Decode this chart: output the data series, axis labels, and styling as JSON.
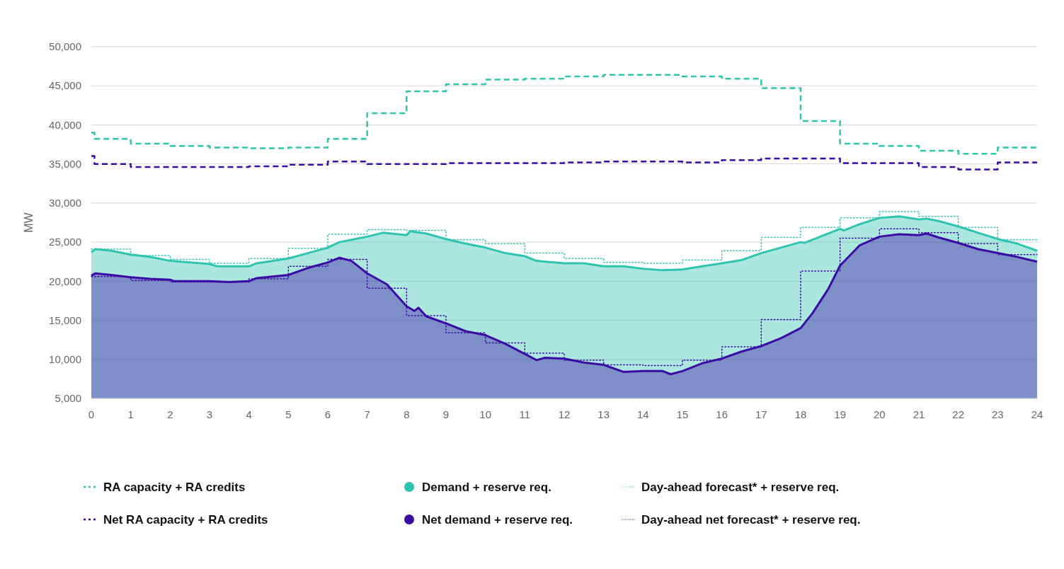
{
  "chart_data": {
    "type": "step",
    "ylabel": "MW",
    "xlim": [
      0,
      24
    ],
    "xticks": [
      0,
      1,
      2,
      3,
      4,
      5,
      6,
      7,
      8,
      9,
      10,
      11,
      12,
      13,
      14,
      15,
      16,
      17,
      18,
      19,
      20,
      21,
      22,
      23,
      24
    ],
    "ylim": [
      5000,
      50000
    ],
    "yticks": [
      {
        "value": 5000,
        "label": "5,000"
      },
      {
        "value": 10000,
        "label": "10,000"
      },
      {
        "value": 15000,
        "label": "15,000"
      },
      {
        "value": 20000,
        "label": "20,000"
      },
      {
        "value": 25000,
        "label": "25,000"
      },
      {
        "value": 30000,
        "label": "30,000"
      },
      {
        "value": 35000,
        "label": "35,000"
      },
      {
        "value": 40000,
        "label": "40,000"
      },
      {
        "value": 45000,
        "label": "45,000"
      },
      {
        "value": 50000,
        "label": "50,000"
      }
    ],
    "grid": "y",
    "legend": "bottom",
    "marker": "none",
    "series": [
      {
        "name": "RA capacity + RA credits",
        "line_style": "dashed",
        "color": "#2ec4b0",
        "x": [
          0,
          0.08,
          1,
          2,
          3,
          4,
          5,
          6,
          7,
          8,
          9,
          10,
          11,
          12,
          13,
          14,
          15,
          16,
          17,
          18,
          19,
          20,
          21,
          22,
          23,
          24
        ],
        "values": [
          39000,
          38200,
          37600,
          37300,
          37100,
          37000,
          37100,
          38200,
          41500,
          44300,
          45200,
          45800,
          45900,
          46200,
          46400,
          46400,
          46200,
          45900,
          44700,
          40500,
          37600,
          37300,
          36700,
          36300,
          37100,
          37100
        ]
      },
      {
        "name": "Demand + reserve req.",
        "type": "area",
        "line_style": "solid",
        "color": "#2ec4b0",
        "x": [
          0,
          0.1,
          0.5,
          1,
          1.5,
          2,
          2.5,
          3,
          3.2,
          4,
          4.2,
          5,
          5.5,
          6,
          6.3,
          7,
          7.4,
          8,
          8.1,
          8.5,
          9,
          9.5,
          10,
          10.5,
          11,
          11.3,
          12,
          12.5,
          13,
          13.5,
          14,
          14.5,
          15,
          15.5,
          16,
          16.5,
          17,
          17.5,
          18,
          18.1,
          18.5,
          19,
          19.1,
          19.5,
          20,
          20.5,
          21,
          21.2,
          21.5,
          22,
          22.5,
          23,
          23.5,
          24
        ],
        "values": [
          23700,
          24100,
          23900,
          23400,
          23100,
          22600,
          22400,
          22200,
          21900,
          21900,
          22300,
          22900,
          23600,
          24300,
          25000,
          25700,
          26200,
          25900,
          26400,
          26100,
          25400,
          24800,
          24300,
          23600,
          23200,
          22600,
          22300,
          22300,
          21900,
          21900,
          21600,
          21400,
          21500,
          21900,
          22300,
          22700,
          23600,
          24300,
          25000,
          24900,
          25700,
          26700,
          26500,
          27300,
          28100,
          28300,
          27900,
          28000,
          27700,
          27000,
          26200,
          25400,
          24800,
          23900
        ]
      },
      {
        "name": "Day-ahead forecast* + reserve req.",
        "line_style": "dotted",
        "color": "#2ec4b0",
        "x": [
          0,
          1,
          2,
          3,
          4,
          5,
          6,
          7,
          8,
          9,
          10,
          11,
          12,
          13,
          14,
          15,
          16,
          17,
          18,
          19,
          20,
          21,
          22,
          23,
          24
        ],
        "values": [
          24100,
          23300,
          22800,
          22300,
          22900,
          24200,
          26000,
          26600,
          26500,
          25300,
          24800,
          23600,
          22900,
          22400,
          22300,
          22700,
          23900,
          25600,
          26900,
          28100,
          28900,
          28300,
          26900,
          25300,
          25300
        ]
      },
      {
        "name": "Net RA capacity + RA credits",
        "line_style": "dashed",
        "color": "#3a0ca3",
        "x": [
          0,
          0.08,
          1,
          2,
          3,
          4,
          5,
          6,
          7,
          8,
          9,
          10,
          11,
          12,
          13,
          14,
          15,
          16,
          17,
          18,
          19,
          20,
          21,
          22,
          23,
          24
        ],
        "values": [
          36000,
          35000,
          34600,
          34600,
          34600,
          34700,
          34900,
          35300,
          35000,
          35000,
          35100,
          35100,
          35100,
          35200,
          35300,
          35300,
          35200,
          35500,
          35700,
          35700,
          35100,
          35100,
          34600,
          34300,
          35200,
          35200
        ]
      },
      {
        "name": "Net demand + reserve req.",
        "type": "area",
        "line_style": "solid",
        "color": "#3a0ca3",
        "x": [
          0,
          0.1,
          0.5,
          1,
          1.5,
          2,
          2.1,
          3,
          3.5,
          4,
          4.2,
          5,
          5.5,
          6,
          6.3,
          6.6,
          7,
          7.5,
          8,
          8.2,
          8.3,
          8.5,
          9,
          9.5,
          10,
          10.5,
          11,
          11.3,
          11.5,
          12,
          12.5,
          13,
          13.5,
          14,
          14.5,
          14.7,
          15,
          15.5,
          16,
          16.5,
          17,
          17.5,
          18,
          18.3,
          18.7,
          19,
          19.5,
          20,
          20.5,
          21,
          21.2,
          21.5,
          22,
          22.5,
          23,
          23.5,
          24
        ],
        "values": [
          20700,
          21000,
          20800,
          20500,
          20300,
          20200,
          20000,
          20000,
          19900,
          20000,
          20400,
          20800,
          21700,
          22400,
          23000,
          22600,
          21000,
          19600,
          16800,
          16200,
          16600,
          15500,
          14600,
          13600,
          13100,
          12000,
          10700,
          9900,
          10200,
          10100,
          9600,
          9300,
          8400,
          8500,
          8500,
          8100,
          8500,
          9500,
          10100,
          11000,
          11700,
          12700,
          14000,
          15900,
          19000,
          22000,
          24600,
          25700,
          26000,
          25900,
          26100,
          25600,
          24900,
          24100,
          23600,
          23100,
          22500
        ]
      },
      {
        "name": "Day-ahead net forecast* + reserve req.",
        "line_style": "dotted",
        "color": "#3a0ca3",
        "x": [
          0,
          1,
          2,
          3,
          4,
          5,
          6,
          7,
          8,
          9,
          10,
          11,
          12,
          13,
          14,
          15,
          16,
          17,
          18,
          19,
          20,
          21,
          22,
          23,
          24
        ],
        "values": [
          20600,
          20100,
          19900,
          19900,
          20300,
          21900,
          22800,
          19100,
          15600,
          13400,
          12100,
          10800,
          9900,
          9300,
          9200,
          9900,
          11600,
          15100,
          21300,
          25500,
          26700,
          26200,
          24800,
          23400,
          23400
        ]
      }
    ]
  }
}
